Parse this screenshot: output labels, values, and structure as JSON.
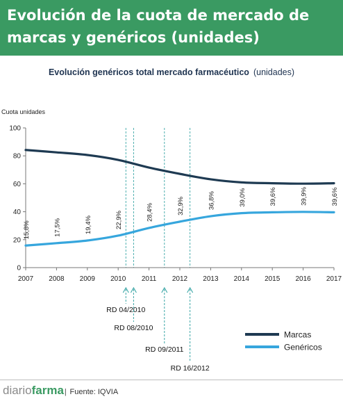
{
  "header": {
    "title": "Evolución de la cuota de mercado de marcas y genéricos (unidades)"
  },
  "subtitle": {
    "main": "Evolución genéricos total mercado farmacéutico",
    "unit": "(unidades)"
  },
  "footer": {
    "brand_part1": "diario",
    "brand_part2": "farma",
    "separator": "|",
    "source": "Fuente: IQVIA"
  },
  "colors": {
    "header_bg": "#3a9a62",
    "marcas": "#1e3a52",
    "genericos": "#36a6dd",
    "annotations": "#3aa6a6"
  },
  "chart_data": {
    "type": "line",
    "ylabel": "Cuota unidades",
    "xlabel": "",
    "ylim": [
      0,
      100
    ],
    "yticks": [
      "0",
      "20",
      "40",
      "60",
      "80",
      "100"
    ],
    "xlim": [
      2007,
      2017
    ],
    "xticks": [
      "2007",
      "2008",
      "2009",
      "2010",
      "2011",
      "2012",
      "2013",
      "2014",
      "2015",
      "2016",
      "2017"
    ],
    "grid": false,
    "legend_position": "bottom-right",
    "series": [
      {
        "name": "Marcas",
        "color": "#1e3a52",
        "points": [
          [
            2007,
            84.2
          ],
          [
            2008,
            82.5
          ],
          [
            2009,
            80.6
          ],
          [
            2010,
            77.1
          ],
          [
            2011,
            71.6
          ],
          [
            2012,
            67.1
          ],
          [
            2013,
            63.2
          ],
          [
            2014,
            61.0
          ],
          [
            2015,
            60.4
          ],
          [
            2016,
            60.1
          ],
          [
            2017,
            60.4
          ]
        ]
      },
      {
        "name": "Genéricos",
        "color": "#36a6dd",
        "points": [
          [
            2007,
            15.8
          ],
          [
            2008,
            17.5
          ],
          [
            2009,
            19.4
          ],
          [
            2010,
            22.9
          ],
          [
            2011,
            28.4
          ],
          [
            2012,
            32.9
          ],
          [
            2013,
            36.8
          ],
          [
            2014,
            39.0
          ],
          [
            2015,
            39.6
          ],
          [
            2016,
            39.9
          ],
          [
            2017,
            39.6
          ]
        ],
        "labels": [
          "15,8%",
          "17,5%",
          "19,4%",
          "22,9%",
          "28,4%",
          "32,9%",
          "36,8%",
          "39,0%",
          "39,6%",
          "39,9%",
          "39,6%"
        ]
      }
    ],
    "annotations": [
      {
        "x": 2010.25,
        "label": "RD 04/2010",
        "row": 0
      },
      {
        "x": 2010.5,
        "label": "RD 08/2010",
        "row": 1
      },
      {
        "x": 2011.5,
        "label": "RD 09/2011",
        "row": 2
      },
      {
        "x": 2012.33,
        "label": "RD 16/2012",
        "row": 3
      }
    ]
  }
}
